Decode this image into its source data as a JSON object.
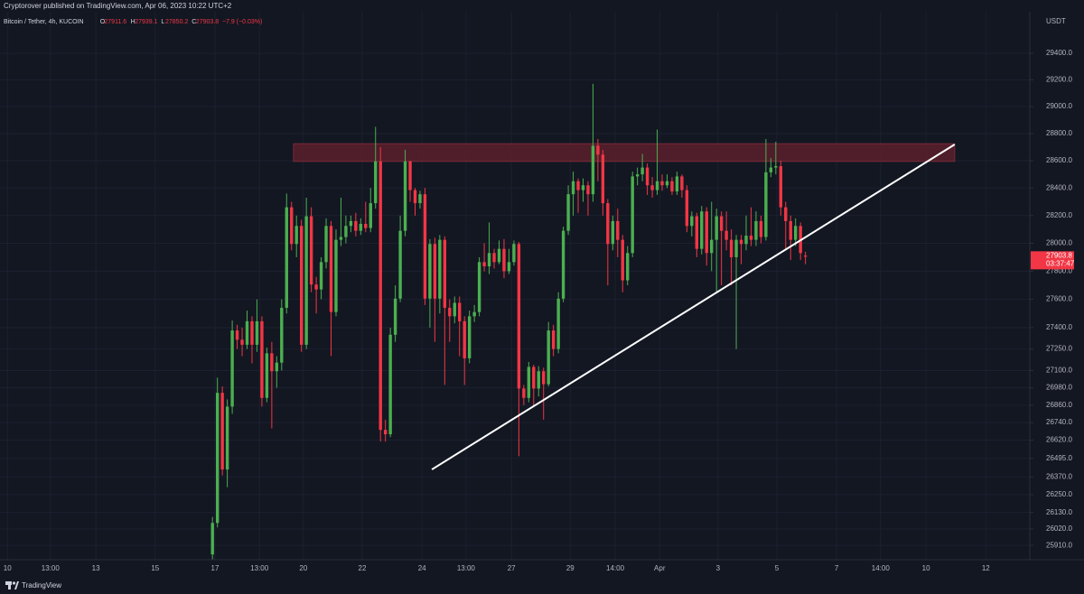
{
  "publisher_line": "Cryptorover published on TradingView.com, Apr 06, 2023 10:22 UTC+2",
  "chart_data": {
    "type": "candlestick",
    "title": "Bitcoin / Tether, 4h, KUCOIN",
    "ohlc_labels": [
      "O",
      "H",
      "L",
      "C"
    ],
    "change_label": "−7.9 (−0.03%)",
    "currency": "USDT",
    "countdown": "03:37:47",
    "up_color": "#4caf50",
    "down_color": "#f23645",
    "log_scale": true,
    "grid": true,
    "xlim": [
      0,
      208.4
    ],
    "ylim": [
      25815,
      29805
    ],
    "xticks": [
      {
        "value": 1.5,
        "label": "10"
      },
      {
        "value": 10.2,
        "label": "13:00"
      },
      {
        "value": 19.4,
        "label": "13"
      },
      {
        "value": 31.4,
        "label": "15"
      },
      {
        "value": 43.5,
        "label": "17"
      },
      {
        "value": 52.5,
        "label": "13:00"
      },
      {
        "value": 61.4,
        "label": "20"
      },
      {
        "value": 73.3,
        "label": "22"
      },
      {
        "value": 85.4,
        "label": "24"
      },
      {
        "value": 94.3,
        "label": "13:00"
      },
      {
        "value": 103.5,
        "label": "27"
      },
      {
        "value": 115.4,
        "label": "29"
      },
      {
        "value": 124.5,
        "label": "14:00"
      },
      {
        "value": 133.5,
        "label": "Apr"
      },
      {
        "value": 145.3,
        "label": "3"
      },
      {
        "value": 157.2,
        "label": "5"
      },
      {
        "value": 169.3,
        "label": "7"
      },
      {
        "value": 178.2,
        "label": "14:00"
      },
      {
        "value": 187.4,
        "label": "10"
      },
      {
        "value": 199.5,
        "label": "12"
      }
    ],
    "yticks": [
      {
        "value": 29400,
        "label": "29400.0"
      },
      {
        "value": 29200,
        "label": "29200.0"
      },
      {
        "value": 29000,
        "label": "29000.0"
      },
      {
        "value": 28800,
        "label": "28800.0"
      },
      {
        "value": 28600,
        "label": "28600.0"
      },
      {
        "value": 28400,
        "label": "28400.0"
      },
      {
        "value": 28200,
        "label": "28200.0"
      },
      {
        "value": 28000,
        "label": "28000.0"
      },
      {
        "value": 27800,
        "label": "27800.0"
      },
      {
        "value": 27600,
        "label": "27600.0"
      },
      {
        "value": 27400,
        "label": "27400.0"
      },
      {
        "value": 27250,
        "label": "27250.0"
      },
      {
        "value": 27100,
        "label": "27100.0"
      },
      {
        "value": 26980,
        "label": "26980.0"
      },
      {
        "value": 26860,
        "label": "26860.0"
      },
      {
        "value": 26740,
        "label": "26740.0"
      },
      {
        "value": 26620,
        "label": "26620.0"
      },
      {
        "value": 26495,
        "label": "26495.0"
      },
      {
        "value": 26370,
        "label": "26370.0"
      },
      {
        "value": 26250,
        "label": "26250.0"
      },
      {
        "value": 26130,
        "label": "26130.0"
      },
      {
        "value": 26020,
        "label": "26020.0"
      },
      {
        "value": 25910,
        "label": "25910.0"
      }
    ],
    "x": [
      43,
      44,
      45,
      46,
      47,
      48,
      49,
      50,
      51,
      52,
      53,
      54,
      55,
      56,
      57,
      58,
      59,
      60,
      61,
      62,
      63,
      64,
      65,
      66,
      67,
      68,
      69,
      70,
      71,
      72,
      73,
      74,
      75,
      76,
      77,
      78,
      79,
      80,
      81,
      82,
      83,
      84,
      85,
      86,
      87,
      88,
      89,
      90,
      91,
      92,
      93,
      94,
      95,
      96,
      97,
      98,
      99,
      100,
      101,
      102,
      103,
      104,
      105,
      106,
      107,
      108,
      109,
      110,
      111,
      112,
      113,
      114,
      115,
      116,
      117,
      118,
      119,
      120,
      121,
      122,
      123,
      124,
      125,
      126,
      127,
      128,
      129,
      130,
      131,
      132,
      133,
      134,
      135,
      136,
      137,
      138,
      139,
      140,
      141,
      142,
      143,
      144,
      145,
      146,
      147,
      148,
      149,
      150,
      151,
      152,
      153,
      154,
      155,
      156,
      157,
      158,
      159,
      160,
      161,
      162,
      163
    ],
    "open": [
      25850,
      26060,
      26945,
      26420,
      26850,
      27380,
      27315,
      27280,
      27445,
      27280,
      27445,
      26910,
      27220,
      27095,
      27155,
      27540,
      28260,
      27995,
      28125,
      27280,
      28195,
      27705,
      27670,
      27865,
      28125,
      27510,
      28025,
      28045,
      28125,
      28160,
      28090,
      28140,
      28110,
      28290,
      28595,
      26690,
      26660,
      27350,
      27605,
      28090,
      28595,
      28385,
      28290,
      28355,
      27605,
      27995,
      27605,
      28025,
      27540,
      27480,
      27575,
      27445,
      27185,
      27480,
      27510,
      27865,
      27835,
      27930,
      27865,
      27960,
      27800,
      27865,
      27995,
      26975,
      26910,
      27125,
      26975,
      27095,
      27005,
      27380,
      27250,
      27605,
      28090,
      28355,
      28450,
      28385,
      28420,
      28355,
      28710,
      28645,
      28290,
      27995,
      28160,
      28025,
      27735,
      27930,
      28485,
      28500,
      28550,
      28420,
      28385,
      28450,
      28420,
      28450,
      28375,
      28485,
      28385,
      28125,
      28195,
      27960,
      28230,
      27930,
      28025,
      28195,
      28090,
      28025,
      27900,
      28025,
      27995,
      28055,
      28025,
      28160,
      28045,
      28515,
      28550,
      28560,
      28260,
      28160,
      28025,
      28125,
      27911.6
    ],
    "high": [
      26100,
      27050,
      26990,
      26900,
      27450,
      27420,
      27400,
      27520,
      27480,
      27600,
      27480,
      27260,
      27300,
      27200,
      27600,
      28360,
      28300,
      28200,
      28170,
      28330,
      28260,
      27760,
      27900,
      28180,
      28160,
      28100,
      28330,
      28200,
      28200,
      28220,
      28180,
      28300,
      28400,
      28850,
      28700,
      26760,
      27400,
      27700,
      28200,
      28680,
      28600,
      28400,
      28380,
      28400,
      28030,
      28040,
      28060,
      28050,
      27600,
      27620,
      27620,
      27480,
      27520,
      27560,
      27900,
      28000,
      28150,
      27960,
      28020,
      28030,
      27960,
      28020,
      28010,
      27000,
      27160,
      27140,
      27130,
      27120,
      27440,
      27420,
      27650,
      28120,
      28420,
      28520,
      28470,
      28470,
      28450,
      29170,
      28760,
      28680,
      28320,
      28200,
      28250,
      28060,
      27980,
      28520,
      28550,
      28650,
      28580,
      28480,
      28830,
      28500,
      28500,
      28480,
      28520,
      28500,
      28420,
      28230,
      28220,
      28270,
      28260,
      28300,
      28250,
      28230,
      28230,
      28100,
      28060,
      28060,
      28200,
      28260,
      28230,
      28200,
      28760,
      28620,
      28740,
      28600,
      28300,
      28200,
      28180,
      28150,
      27939.1
    ],
    "low": [
      25800,
      26030,
      26380,
      26300,
      26800,
      27250,
      27200,
      27250,
      27150,
      27230,
      26850,
      26880,
      26700,
      26980,
      27100,
      27500,
      27950,
      27900,
      27230,
      27250,
      27650,
      27500,
      27600,
      27820,
      27200,
      27480,
      27980,
      28000,
      28080,
      28050,
      28060,
      28080,
      28080,
      28250,
      26610,
      26610,
      26640,
      27300,
      27580,
      28050,
      28300,
      28200,
      28250,
      27560,
      27400,
      27300,
      27500,
      27000,
      27300,
      27430,
      27200,
      27000,
      27150,
      27440,
      27480,
      27800,
      27780,
      27820,
      27850,
      27750,
      27780,
      27840,
      26510,
      26860,
      26880,
      26850,
      26920,
      26760,
      26990,
      27200,
      27220,
      27580,
      28060,
      28200,
      28220,
      28300,
      28200,
      28300,
      28450,
      28200,
      27700,
      27950,
      27900,
      27650,
      27700,
      27900,
      28420,
      28450,
      28350,
      28330,
      28350,
      28380,
      28400,
      28350,
      28350,
      28330,
      28080,
      28050,
      27900,
      27920,
      27840,
      27800,
      27650,
      27700,
      27950,
      27700,
      27250,
      27850,
      27950,
      27980,
      27980,
      28000,
      28020,
      28480,
      28500,
      28200,
      27950,
      27880,
      27980,
      27880,
      27850.2
    ],
    "close": [
      26060,
      26945,
      26420,
      26850,
      27380,
      27315,
      27280,
      27445,
      27280,
      27445,
      26910,
      27220,
      27095,
      27155,
      27540,
      28260,
      27995,
      28125,
      27280,
      28195,
      27705,
      27670,
      27865,
      28125,
      27510,
      28025,
      28045,
      28125,
      28160,
      28090,
      28140,
      28110,
      28290,
      28595,
      26690,
      26660,
      27350,
      27605,
      28090,
      28595,
      28385,
      28290,
      28355,
      27605,
      27995,
      27605,
      28025,
      27540,
      27480,
      27575,
      27445,
      27185,
      27480,
      27510,
      27865,
      27835,
      27930,
      27865,
      27960,
      27800,
      27865,
      27995,
      26975,
      26910,
      27125,
      26975,
      27095,
      27005,
      27380,
      27250,
      27605,
      28090,
      28355,
      28450,
      28385,
      28420,
      28355,
      28710,
      28645,
      28290,
      27995,
      28160,
      28025,
      27735,
      27930,
      28485,
      28500,
      28550,
      28420,
      28385,
      28450,
      28420,
      28450,
      28375,
      28485,
      28385,
      28125,
      28195,
      27960,
      28230,
      27930,
      28025,
      28195,
      28090,
      28025,
      27900,
      28025,
      27995,
      28055,
      28025,
      28160,
      28045,
      28515,
      28550,
      28560,
      28260,
      28160,
      28025,
      28125,
      27930,
      27903.8
    ],
    "zone": {
      "x": [
        59.4,
        193.2
      ],
      "y": [
        28595,
        28725
      ],
      "color": "#5c1f2b"
    },
    "trendline": {
      "x": [
        87.4,
        193.2
      ],
      "y": [
        26420,
        28720
      ],
      "color": "#ffffff"
    }
  },
  "footer_brand": "TradingView"
}
